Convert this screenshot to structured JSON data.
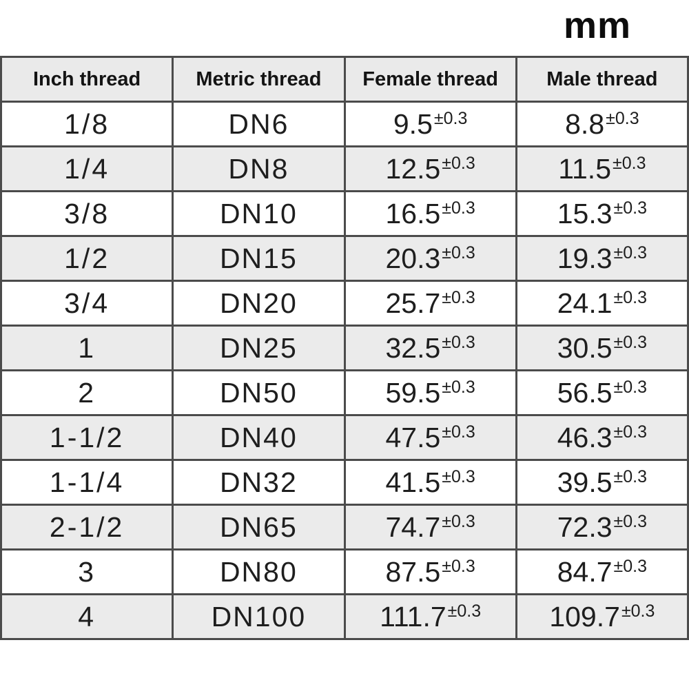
{
  "unit_label": "mm",
  "table": {
    "headers": [
      "Inch thread",
      "Metric thread",
      "Female thread",
      "Male thread"
    ],
    "tolerance": "±0.3",
    "rows": [
      {
        "inch": "1/8",
        "metric": "DN6",
        "female": "9.5",
        "male": "8.8"
      },
      {
        "inch": "1/4",
        "metric": "DN8",
        "female": "12.5",
        "male": "11.5"
      },
      {
        "inch": "3/8",
        "metric": "DN10",
        "female": "16.5",
        "male": "15.3"
      },
      {
        "inch": "1/2",
        "metric": "DN15",
        "female": "20.3",
        "male": "19.3"
      },
      {
        "inch": "3/4",
        "metric": "DN20",
        "female": "25.7",
        "male": "24.1"
      },
      {
        "inch": "1",
        "metric": "DN25",
        "female": "32.5",
        "male": "30.5"
      },
      {
        "inch": "2",
        "metric": "DN50",
        "female": "59.5",
        "male": "56.5"
      },
      {
        "inch": "1-1/2",
        "metric": "DN40",
        "female": "47.5",
        "male": "46.3"
      },
      {
        "inch": "1-1/4",
        "metric": "DN32",
        "female": "41.5",
        "male": "39.5"
      },
      {
        "inch": "2-1/2",
        "metric": "DN65",
        "female": "74.7",
        "male": "72.3"
      },
      {
        "inch": "3",
        "metric": "DN80",
        "female": "87.5",
        "male": "84.7"
      },
      {
        "inch": "4",
        "metric": "DN100",
        "female": "111.7",
        "male": "109.7"
      }
    ]
  },
  "colors": {
    "row_alt_background": "#ebebeb",
    "border": "#4b4b4b",
    "text": "#1e1e1e"
  }
}
